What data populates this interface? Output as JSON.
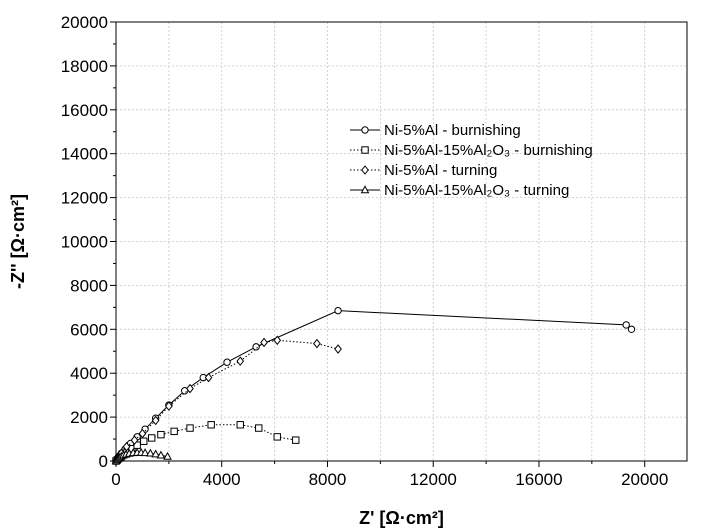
{
  "chart_data": {
    "type": "scatter",
    "xlabel": "Z' [Ω·cm²]",
    "ylabel": "-Z'' [Ω·cm²]",
    "xlim": [
      0,
      21600
    ],
    "ylim": [
      0,
      20000
    ],
    "xticks": [
      0,
      4000,
      8000,
      12000,
      16000,
      20000
    ],
    "yticks": [
      0,
      2000,
      4000,
      6000,
      8000,
      10000,
      12000,
      14000,
      16000,
      18000,
      20000
    ],
    "grid": true,
    "legend_position": "upper-center",
    "series": [
      {
        "name": "Ni-5%Al - burnishing",
        "marker": "circle",
        "line": "solid",
        "x": [
          0,
          50,
          100,
          200,
          350,
          550,
          800,
          1100,
          1500,
          2000,
          2600,
          3300,
          4200,
          5300,
          8400,
          19300,
          19500
        ],
        "y": [
          0,
          100,
          200,
          350,
          550,
          800,
          1100,
          1450,
          1950,
          2550,
          3200,
          3800,
          4500,
          5200,
          6850,
          6200,
          6000
        ]
      },
      {
        "name": "Ni-5%Al-15%Al₂O₃ - burnishing",
        "marker": "square",
        "line": "dotted",
        "x": [
          0,
          50,
          100,
          180,
          280,
          420,
          600,
          800,
          1050,
          1350,
          1700,
          2200,
          2800,
          3600,
          4700,
          5400,
          6100,
          6800
        ],
        "y": [
          0,
          50,
          110,
          180,
          280,
          420,
          560,
          720,
          900,
          1050,
          1200,
          1350,
          1500,
          1650,
          1650,
          1500,
          1100,
          950
        ]
      },
      {
        "name": "Ni-5%Al - turning",
        "marker": "diamond",
        "line": "dotted",
        "x": [
          0,
          80,
          200,
          400,
          700,
          1000,
          1500,
          2000,
          2800,
          3500,
          4700,
          5600,
          6100,
          7600,
          8400
        ],
        "y": [
          0,
          150,
          350,
          650,
          950,
          1250,
          1850,
          2500,
          3300,
          3800,
          4550,
          5400,
          5500,
          5350,
          5100
        ]
      },
      {
        "name": "Ni-5%Al-15%Al₂O₃ - turning",
        "marker": "triangle",
        "line": "solid",
        "x": [
          0,
          40,
          80,
          130,
          200,
          280,
          380,
          500,
          650,
          800,
          950,
          1100,
          1300,
          1500,
          1700,
          1950
        ],
        "y": [
          0,
          60,
          110,
          160,
          210,
          260,
          300,
          340,
          370,
          380,
          380,
          370,
          350,
          310,
          260,
          200
        ]
      }
    ]
  }
}
